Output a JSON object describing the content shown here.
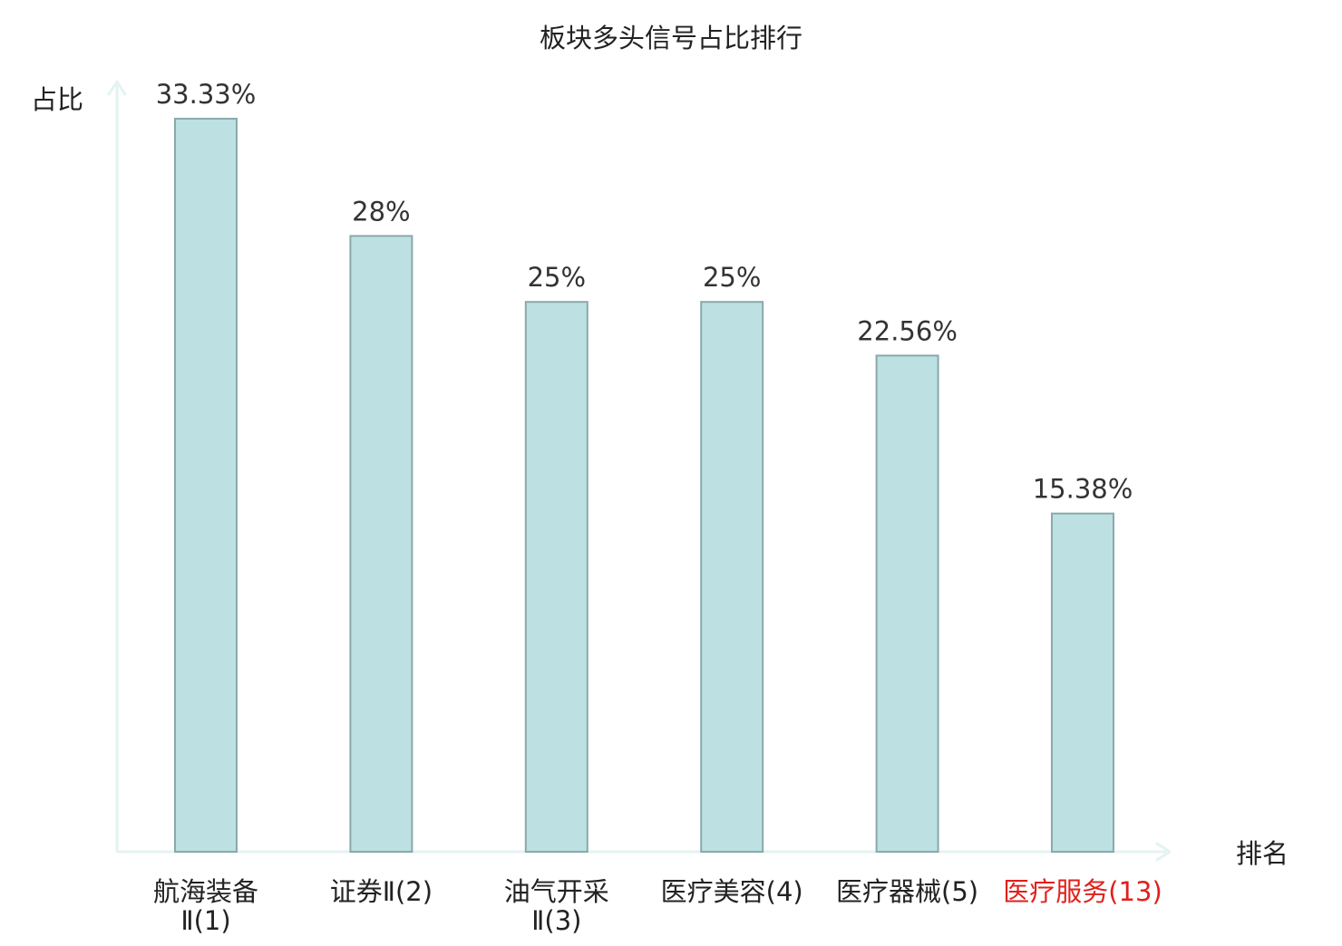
{
  "chart_data": {
    "type": "bar",
    "title": "板块多头信号占比排行",
    "ylabel": "占比",
    "xlabel": "排名",
    "categories": [
      [
        "航海装备",
        "Ⅱ(1)"
      ],
      [
        "证券Ⅱ(2)"
      ],
      [
        "油气开采",
        "Ⅱ(3)"
      ],
      [
        "医疗美容(4)"
      ],
      [
        "医疗器械(5)"
      ],
      [
        "医疗服务(13)"
      ]
    ],
    "values": [
      33.33,
      28,
      25,
      25,
      22.56,
      15.38
    ],
    "value_labels": [
      "33.33%",
      "28%",
      "25%",
      "25%",
      "22.56%",
      "15.38%"
    ],
    "highlighted_category_index": 5,
    "ylim": [
      0,
      35
    ],
    "grid": false,
    "legend": "none",
    "colors": {
      "bar_fill": "#bde0e2",
      "bar_stroke": "#8aa9aa",
      "axis": "#e3f3f1",
      "text": "#222222",
      "value_label": "#333333",
      "highlight": "#e0201b"
    }
  }
}
